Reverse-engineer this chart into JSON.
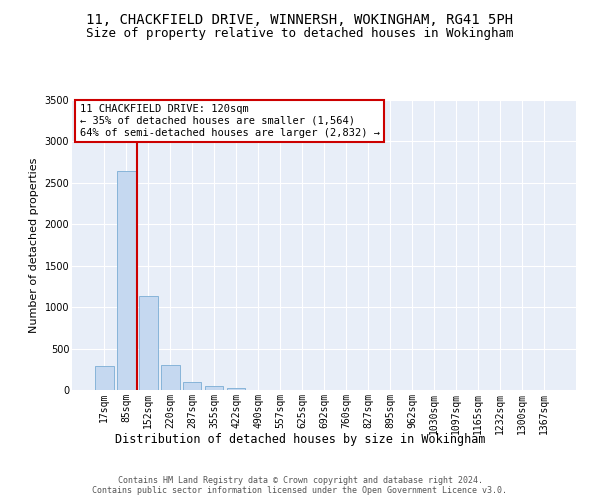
{
  "title": "11, CHACKFIELD DRIVE, WINNERSH, WOKINGHAM, RG41 5PH",
  "subtitle": "Size of property relative to detached houses in Wokingham",
  "xlabel": "Distribution of detached houses by size in Wokingham",
  "ylabel": "Number of detached properties",
  "bar_color": "#c5d8f0",
  "bar_edge_color": "#7aadd4",
  "vline_color": "#cc0000",
  "categories": [
    "17sqm",
    "85sqm",
    "152sqm",
    "220sqm",
    "287sqm",
    "355sqm",
    "422sqm",
    "490sqm",
    "557sqm",
    "625sqm",
    "692sqm",
    "760sqm",
    "827sqm",
    "895sqm",
    "962sqm",
    "1030sqm",
    "1097sqm",
    "1165sqm",
    "1232sqm",
    "1300sqm",
    "1367sqm"
  ],
  "values": [
    290,
    2640,
    1140,
    300,
    95,
    45,
    30,
    0,
    0,
    0,
    0,
    0,
    0,
    0,
    0,
    0,
    0,
    0,
    0,
    0,
    0
  ],
  "ylim": [
    0,
    3500
  ],
  "yticks": [
    0,
    500,
    1000,
    1500,
    2000,
    2500,
    3000,
    3500
  ],
  "vline_position": 1.5,
  "annotation_text": "11 CHACKFIELD DRIVE: 120sqm\n← 35% of detached houses are smaller (1,564)\n64% of semi-detached houses are larger (2,832) →",
  "background_color": "#e8eef8",
  "grid_color": "#ffffff",
  "footer_text": "Contains HM Land Registry data © Crown copyright and database right 2024.\nContains public sector information licensed under the Open Government Licence v3.0.",
  "title_fontsize": 10,
  "subtitle_fontsize": 9,
  "annotation_fontsize": 7.5,
  "tick_fontsize": 7,
  "ylabel_fontsize": 8,
  "xlabel_fontsize": 8.5,
  "footer_fontsize": 6
}
